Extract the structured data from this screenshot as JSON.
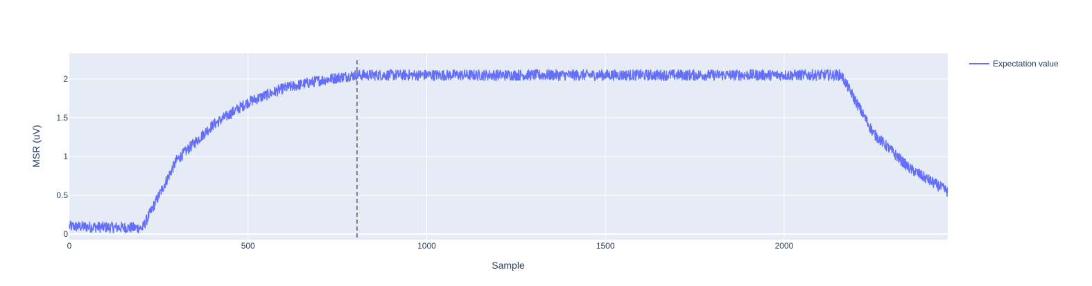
{
  "chart_data": {
    "type": "line",
    "title": "",
    "xlabel": "Sample",
    "ylabel": "MSR (uV)",
    "xlim": [
      0,
      2458
    ],
    "ylim": [
      -0.07,
      2.33
    ],
    "x_ticks": [
      0,
      500,
      1000,
      1500,
      2000
    ],
    "y_ticks": [
      0,
      0.5,
      1,
      1.5,
      2
    ],
    "x_tick_labels": [
      "0",
      "500",
      "1000",
      "1500",
      "2000"
    ],
    "y_tick_labels": [
      "0",
      "0.5",
      "1",
      "1.5",
      "2"
    ],
    "grid": true,
    "legend_position": "top-right",
    "background_color": "#e5ecf6",
    "series": [
      {
        "name": "Expectation value",
        "color": "#636efa",
        "n_samples": 2458,
        "shape_x": [
          0,
          205,
          300,
          400,
          500,
          600,
          700,
          800,
          2160,
          2250,
          2350,
          2458
        ],
        "shape_y": [
          0.1,
          0.08,
          0.95,
          1.4,
          1.7,
          1.88,
          1.98,
          2.05,
          2.05,
          1.3,
          0.85,
          0.55
        ],
        "noise_amplitude": 0.07
      }
    ],
    "vertical_line": {
      "x": 805,
      "style": "dashed",
      "color": "#7f7f7f"
    }
  }
}
